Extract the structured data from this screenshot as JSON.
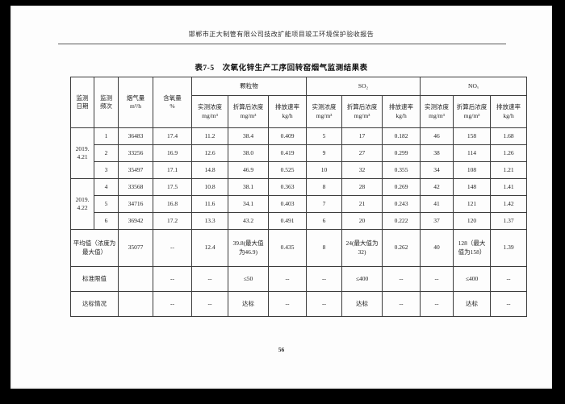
{
  "page": {
    "running_header": "邯郸市正大制管有限公司技改扩能项目竣工环境保护验收报告",
    "page_number": "56"
  },
  "table": {
    "title": "表7-5　次氧化锌生产工序回转窑烟气监测结果表",
    "header": {
      "date": "监测\n日期",
      "frequency": "监测\n频次",
      "flue_gas": "烟气量\nm³/h",
      "oxygen": "含氧量\n%",
      "groups": [
        "颗粒物",
        "SO₂",
        "NOₓ"
      ],
      "sub": [
        "实测浓度\nmg/m³",
        "折算后浓度\nmg/m³",
        "排放速率\nkg/h"
      ]
    },
    "rows": [
      {
        "date": "2019.\n4.21",
        "date_rowspan": 3,
        "frequency": "1",
        "values": [
          "36483",
          "17.4",
          "11.2",
          "38.4",
          "0.409",
          "5",
          "17",
          "0.182",
          "46",
          "158",
          "1.68"
        ]
      },
      {
        "frequency": "2",
        "values": [
          "33256",
          "16.9",
          "12.6",
          "38.0",
          "0.419",
          "9",
          "27",
          "0.299",
          "38",
          "114",
          "1.26"
        ]
      },
      {
        "frequency": "3",
        "values": [
          "35497",
          "17.1",
          "14.8",
          "46.9",
          "0.525",
          "10",
          "32",
          "0.355",
          "34",
          "108",
          "1.21"
        ]
      },
      {
        "date": "2019.\n4.22",
        "date_rowspan": 3,
        "frequency": "4",
        "values": [
          "33568",
          "17.5",
          "10.8",
          "38.1",
          "0.363",
          "8",
          "28",
          "0.269",
          "42",
          "148",
          "1.41"
        ]
      },
      {
        "frequency": "5",
        "values": [
          "34716",
          "16.8",
          "11.6",
          "34.1",
          "0.403",
          "7",
          "21",
          "0.243",
          "41",
          "121",
          "1.42"
        ]
      },
      {
        "frequency": "6",
        "values": [
          "36942",
          "17.2",
          "13.3",
          "43.2",
          "0.491",
          "6",
          "20",
          "0.222",
          "37",
          "120",
          "1.37"
        ]
      }
    ],
    "summary_rows": [
      {
        "label": "平均值（浓度为最大值）",
        "values": [
          "35077",
          "--",
          "12.4",
          "39.8(最大值为46.9)",
          "0.435",
          "8",
          "24(最大值为32)",
          "0.262",
          "40",
          "128（最大值为158）",
          "1.39"
        ]
      },
      {
        "label": "标准限值",
        "values": [
          "",
          "--",
          "--",
          "≤50",
          "--",
          "--",
          "≤400",
          "--",
          "--",
          "≤400",
          "--"
        ]
      },
      {
        "label": "达标情况",
        "values": [
          "",
          "--",
          "--",
          "达标",
          "--",
          "--",
          "达标",
          "--",
          "--",
          "达标",
          "--"
        ]
      }
    ]
  }
}
